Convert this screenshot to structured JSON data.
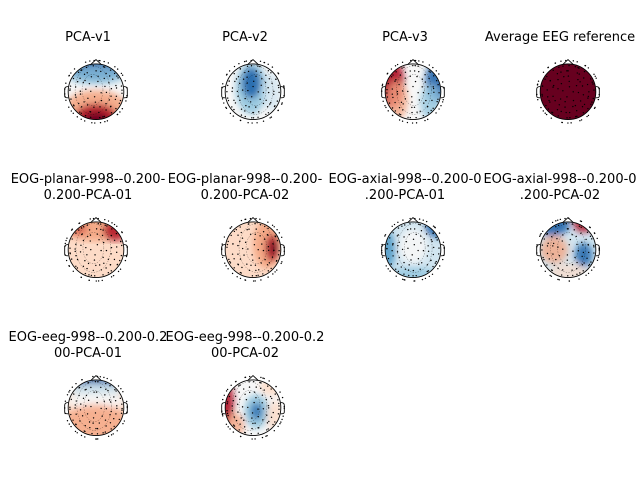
{
  "figure": {
    "panels": [
      {
        "title_lines": [
          "PCA-v1"
        ],
        "pattern": "frontal-blue-posterior-red"
      },
      {
        "title_lines": [
          "PCA-v2"
        ],
        "pattern": "central-blue"
      },
      {
        "title_lines": [
          "PCA-v3"
        ],
        "pattern": "left-red-right-blue"
      },
      {
        "title_lines": [
          "Average EEG reference"
        ],
        "pattern": "uniform-red"
      },
      {
        "title_lines": [
          "EOG-planar-998--0.200-",
          "0.200-PCA-01"
        ],
        "pattern": "frontal-red"
      },
      {
        "title_lines": [
          "EOG-planar-998--0.200-",
          "0.200-PCA-02"
        ],
        "pattern": "right-red"
      },
      {
        "title_lines": [
          "EOG-axial-998--0.200-0",
          ".200-PCA-01"
        ],
        "pattern": "blue-sides"
      },
      {
        "title_lines": [
          "EOG-axial-998--0.200-0",
          ".200-PCA-02"
        ],
        "pattern": "mixed-dipole"
      },
      {
        "title_lines": [
          "EOG-eeg-998--0.200-0.2",
          "00-PCA-01"
        ],
        "pattern": "frontal-blue-posterior-red-light"
      },
      {
        "title_lines": [
          "EOG-eeg-998--0.200-0.2",
          "00-PCA-02"
        ],
        "pattern": "left-red-center-blue"
      }
    ],
    "colors": {
      "red": "#b2182b",
      "blue": "#2166ac",
      "dark_red": "#67001f",
      "white": "#ffffff"
    }
  }
}
